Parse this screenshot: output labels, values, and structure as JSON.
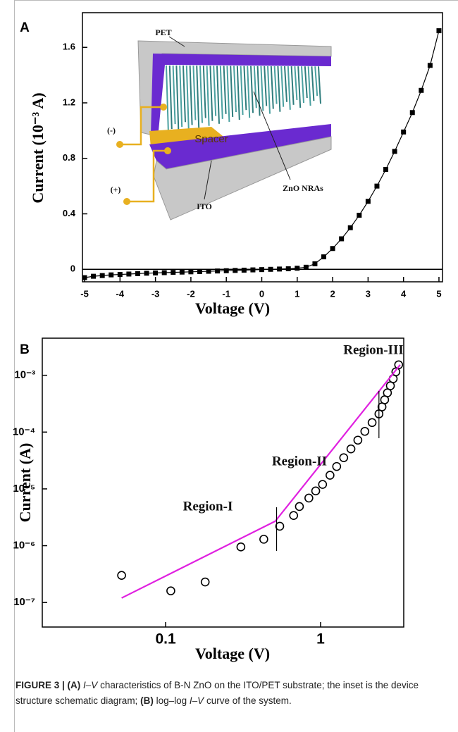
{
  "chart_data": [
    {
      "type": "scatter",
      "panel": "A",
      "xlabel": "Voltage (V)",
      "ylabel": "Current (10⁻³ A)",
      "annotations": [
        "PET",
        "Spacer",
        "ZnO NRAs",
        "ITO",
        "(-)",
        "(+)"
      ],
      "xlim": [
        -5.06,
        5.1
      ],
      "ylim": [
        -0.09,
        1.85
      ],
      "xticks": [
        -5,
        -4,
        -3,
        -2,
        -1,
        0,
        1,
        2,
        3,
        4,
        5
      ],
      "yticks": [
        0,
        0.4,
        0.8,
        1.2,
        1.6
      ],
      "zero_line": true,
      "series": [
        {
          "color": "#000000",
          "mode": "line+markers",
          "marker": "square",
          "x": [
            -5,
            -4.75,
            -4.5,
            -4.25,
            -4,
            -3.75,
            -3.5,
            -3.25,
            -3,
            -2.75,
            -2.5,
            -2.25,
            -2,
            -1.75,
            -1.5,
            -1.25,
            -1,
            -0.75,
            -0.5,
            -0.25,
            0,
            0.25,
            0.5,
            0.75,
            1,
            1.25,
            1.5,
            1.75,
            2,
            2.25,
            2.5,
            2.75,
            3,
            3.25,
            3.5,
            3.75,
            4,
            4.25,
            4.5,
            4.75,
            5
          ],
          "values": [
            -0.06,
            -0.05,
            -0.045,
            -0.04,
            -0.037,
            -0.034,
            -0.031,
            -0.028,
            -0.026,
            -0.024,
            -0.022,
            -0.02,
            -0.018,
            -0.016,
            -0.014,
            -0.012,
            -0.01,
            -0.008,
            -0.006,
            -0.004,
            -0.002,
            0,
            0.002,
            0.004,
            0.008,
            0.015,
            0.04,
            0.09,
            0.15,
            0.22,
            0.3,
            0.39,
            0.49,
            0.6,
            0.72,
            0.85,
            0.99,
            1.13,
            1.29,
            1.47,
            1.72
          ]
        }
      ]
    },
    {
      "type": "scatter",
      "panel": "B",
      "xlabel": "Voltage (V)",
      "ylabel": "Current (A)",
      "annotations": [
        "Region-I",
        "Region-II",
        "Region-III"
      ],
      "xscale": "log",
      "yscale": "log",
      "xlim": [
        0.016,
        3.44
      ],
      "ylim": [
        3.7e-08,
        0.0045
      ],
      "xticks": [
        0.1,
        1
      ],
      "yticks": [
        {
          "value": 1e-07,
          "label": "10⁻⁷"
        },
        {
          "value": 1e-06,
          "label": "10⁻⁶"
        },
        {
          "value": 1e-05,
          "label": "10⁻⁵"
        },
        {
          "value": 0.0001,
          "label": "10⁻⁴"
        },
        {
          "value": 0.001,
          "label": "10⁻³"
        }
      ],
      "region_boundaries": [
        0.52,
        2.38
      ],
      "series": [
        {
          "color": "#000000",
          "mode": "markers",
          "marker": "open-circle",
          "x": [
            0.052,
            0.108,
            0.18,
            0.306,
            0.43,
            0.545,
            0.67,
            0.73,
            0.84,
            0.93,
            1.03,
            1.15,
            1.27,
            1.41,
            1.57,
            1.74,
            1.93,
            2.15,
            2.38,
            2.49,
            2.59,
            2.7,
            2.82,
            2.94,
            3.06,
            3.19
          ],
          "values": [
            3e-07,
            1.6e-07,
            2.3e-07,
            9.5e-07,
            1.3e-06,
            2.2e-06,
            3.4e-06,
            4.9e-06,
            6.9e-06,
            9.2e-06,
            1.2e-05,
            1.74e-05,
            2.48e-05,
            3.54e-05,
            5.06e-05,
            7.21e-05,
            0.000103,
            0.000147,
            0.000209,
            0.000278,
            0.00037,
            0.000491,
            0.000653,
            0.00087,
            0.00115,
            0.00153
          ]
        },
        {
          "color": "#e020e0",
          "mode": "line",
          "x": [
            0.052,
            0.51,
            3.26
          ],
          "values": [
            1.2e-07,
            2.7e-06,
            0.00153
          ]
        }
      ]
    }
  ],
  "caption": [
    "FIGURE 3 | (A)",
    "I–V",
    "characteristics of B-N ZnO on the ITO/PET substrate; the inset is the device structure schematic diagram;",
    "(B)",
    "log–log",
    "I–V",
    "curve of the system."
  ]
}
